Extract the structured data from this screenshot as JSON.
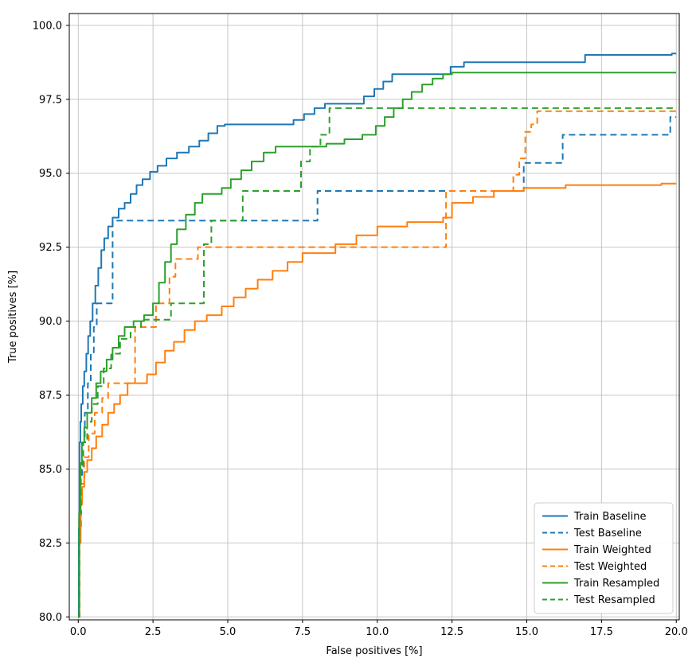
{
  "chart_data": {
    "type": "line",
    "title": "",
    "xlabel": "False positives [%]",
    "ylabel": "True positives [%]",
    "xlim": [
      -0.3,
      20.1
    ],
    "ylim": [
      79.9,
      100.4
    ],
    "xticks": [
      0.0,
      2.5,
      5.0,
      7.5,
      10.0,
      12.5,
      15.0,
      17.5,
      20.0
    ],
    "yticks": [
      80.0,
      82.5,
      85.0,
      87.5,
      90.0,
      92.5,
      95.0,
      97.5,
      100.0
    ],
    "grid": true,
    "legend_position": "lower right",
    "step": "post",
    "series": [
      {
        "name": "Train Baseline",
        "color": "#1f77b4",
        "dash": "solid",
        "points": [
          [
            0,
            80
          ],
          [
            0.02,
            83
          ],
          [
            0.04,
            85.9
          ],
          [
            0.07,
            86.6
          ],
          [
            0.1,
            87.2
          ],
          [
            0.15,
            87.8
          ],
          [
            0.2,
            88.3
          ],
          [
            0.27,
            88.9
          ],
          [
            0.33,
            89.5
          ],
          [
            0.4,
            90.0
          ],
          [
            0.48,
            90.6
          ],
          [
            0.57,
            91.2
          ],
          [
            0.67,
            91.8
          ],
          [
            0.77,
            92.4
          ],
          [
            0.87,
            92.8
          ],
          [
            1.0,
            93.2
          ],
          [
            1.15,
            93.5
          ],
          [
            1.35,
            93.8
          ],
          [
            1.55,
            94.0
          ],
          [
            1.75,
            94.3
          ],
          [
            1.95,
            94.6
          ],
          [
            2.15,
            94.8
          ],
          [
            2.4,
            95.05
          ],
          [
            2.65,
            95.25
          ],
          [
            2.95,
            95.5
          ],
          [
            3.3,
            95.7
          ],
          [
            3.7,
            95.9
          ],
          [
            4.05,
            96.1
          ],
          [
            4.35,
            96.35
          ],
          [
            4.65,
            96.6
          ],
          [
            4.9,
            96.65
          ],
          [
            7.2,
            96.8
          ],
          [
            7.55,
            97.0
          ],
          [
            7.9,
            97.2
          ],
          [
            8.25,
            97.35
          ],
          [
            9.55,
            97.6
          ],
          [
            9.9,
            97.85
          ],
          [
            10.2,
            98.1
          ],
          [
            10.5,
            98.35
          ],
          [
            12.45,
            98.6
          ],
          [
            12.9,
            98.75
          ],
          [
            16.95,
            99.0
          ],
          [
            19.85,
            99.05
          ],
          [
            20,
            99.05
          ]
        ]
      },
      {
        "name": "Test Baseline",
        "color": "#1f77b4",
        "dash": "dashed",
        "points": [
          [
            0,
            80
          ],
          [
            0.03,
            83.2
          ],
          [
            0.07,
            84.8
          ],
          [
            0.13,
            85.9
          ],
          [
            0.22,
            86.9
          ],
          [
            0.32,
            87.9
          ],
          [
            0.42,
            88.9
          ],
          [
            0.52,
            89.8
          ],
          [
            0.62,
            90.6
          ],
          [
            1.15,
            93.4
          ],
          [
            8.0,
            94.4
          ],
          [
            14.9,
            95.35
          ],
          [
            16.2,
            96.3
          ],
          [
            19.8,
            96.9
          ],
          [
            20,
            96.9
          ]
        ]
      },
      {
        "name": "Train Weighted",
        "color": "#ff7f0e",
        "dash": "solid",
        "points": [
          [
            0,
            80
          ],
          [
            0.04,
            82.5
          ],
          [
            0.08,
            83.8
          ],
          [
            0.13,
            84.4
          ],
          [
            0.2,
            84.9
          ],
          [
            0.3,
            85.3
          ],
          [
            0.45,
            85.7
          ],
          [
            0.6,
            86.1
          ],
          [
            0.8,
            86.5
          ],
          [
            1.0,
            86.9
          ],
          [
            1.2,
            87.2
          ],
          [
            1.4,
            87.5
          ],
          [
            1.65,
            87.9
          ],
          [
            2.3,
            88.2
          ],
          [
            2.6,
            88.6
          ],
          [
            2.9,
            89.0
          ],
          [
            3.2,
            89.3
          ],
          [
            3.55,
            89.7
          ],
          [
            3.9,
            90.0
          ],
          [
            4.3,
            90.2
          ],
          [
            4.8,
            90.5
          ],
          [
            5.2,
            90.8
          ],
          [
            5.6,
            91.1
          ],
          [
            6.0,
            91.4
          ],
          [
            6.5,
            91.7
          ],
          [
            7.0,
            92.0
          ],
          [
            7.5,
            92.3
          ],
          [
            8.6,
            92.6
          ],
          [
            9.3,
            92.9
          ],
          [
            10.0,
            93.2
          ],
          [
            11.0,
            93.35
          ],
          [
            12.2,
            93.5
          ],
          [
            12.5,
            94.0
          ],
          [
            13.2,
            94.2
          ],
          [
            13.9,
            94.4
          ],
          [
            14.9,
            94.5
          ],
          [
            16.3,
            94.6
          ],
          [
            19.5,
            94.65
          ],
          [
            20,
            94.65
          ]
        ]
      },
      {
        "name": "Test Weighted",
        "color": "#ff7f0e",
        "dash": "dashed",
        "points": [
          [
            0,
            80
          ],
          [
            0.04,
            83.0
          ],
          [
            0.1,
            84.5
          ],
          [
            0.2,
            85.4
          ],
          [
            0.35,
            86.2
          ],
          [
            0.55,
            86.9
          ],
          [
            0.8,
            87.4
          ],
          [
            1.0,
            87.9
          ],
          [
            1.9,
            89.8
          ],
          [
            2.6,
            90.6
          ],
          [
            3.05,
            91.5
          ],
          [
            3.25,
            92.1
          ],
          [
            4.0,
            92.5
          ],
          [
            12.3,
            94.4
          ],
          [
            14.55,
            94.95
          ],
          [
            14.75,
            95.5
          ],
          [
            14.95,
            96.4
          ],
          [
            15.15,
            96.65
          ],
          [
            15.35,
            97.1
          ],
          [
            20,
            97.1
          ]
        ]
      },
      {
        "name": "Train Resampled",
        "color": "#2ca02c",
        "dash": "solid",
        "points": [
          [
            0,
            80
          ],
          [
            0.03,
            83.5
          ],
          [
            0.07,
            85.2
          ],
          [
            0.12,
            85.9
          ],
          [
            0.2,
            86.4
          ],
          [
            0.3,
            86.9
          ],
          [
            0.45,
            87.4
          ],
          [
            0.6,
            87.9
          ],
          [
            0.75,
            88.3
          ],
          [
            0.95,
            88.7
          ],
          [
            1.15,
            89.1
          ],
          [
            1.35,
            89.5
          ],
          [
            1.55,
            89.8
          ],
          [
            1.85,
            90.0
          ],
          [
            2.2,
            90.2
          ],
          [
            2.5,
            90.6
          ],
          [
            2.7,
            91.3
          ],
          [
            2.9,
            92.0
          ],
          [
            3.1,
            92.6
          ],
          [
            3.3,
            93.1
          ],
          [
            3.6,
            93.6
          ],
          [
            3.9,
            94.0
          ],
          [
            4.15,
            94.3
          ],
          [
            4.8,
            94.5
          ],
          [
            5.1,
            94.8
          ],
          [
            5.45,
            95.1
          ],
          [
            5.8,
            95.4
          ],
          [
            6.2,
            95.7
          ],
          [
            6.6,
            95.9
          ],
          [
            8.3,
            96.0
          ],
          [
            8.9,
            96.15
          ],
          [
            9.5,
            96.3
          ],
          [
            9.95,
            96.6
          ],
          [
            10.25,
            96.9
          ],
          [
            10.55,
            97.2
          ],
          [
            10.85,
            97.5
          ],
          [
            11.15,
            97.75
          ],
          [
            11.5,
            98.0
          ],
          [
            11.85,
            98.2
          ],
          [
            12.2,
            98.35
          ],
          [
            12.5,
            98.4
          ],
          [
            20,
            98.4
          ]
        ]
      },
      {
        "name": "Test Resampled",
        "color": "#2ca02c",
        "dash": "dashed",
        "points": [
          [
            0,
            80
          ],
          [
            0.04,
            83.5
          ],
          [
            0.09,
            85.0
          ],
          [
            0.17,
            85.9
          ],
          [
            0.3,
            86.6
          ],
          [
            0.45,
            87.2
          ],
          [
            0.65,
            87.8
          ],
          [
            0.85,
            88.4
          ],
          [
            1.1,
            88.9
          ],
          [
            1.4,
            89.4
          ],
          [
            1.75,
            89.8
          ],
          [
            2.1,
            90.05
          ],
          [
            3.1,
            90.6
          ],
          [
            4.2,
            92.6
          ],
          [
            4.45,
            93.4
          ],
          [
            5.5,
            94.4
          ],
          [
            7.45,
            95.4
          ],
          [
            7.75,
            95.9
          ],
          [
            8.1,
            96.3
          ],
          [
            8.4,
            97.2
          ],
          [
            20,
            97.2
          ]
        ]
      }
    ]
  }
}
